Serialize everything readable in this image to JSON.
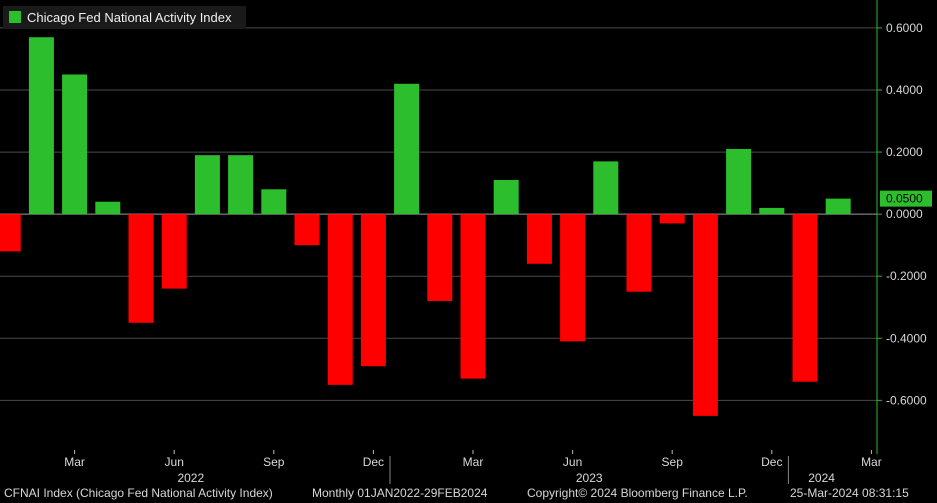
{
  "legend": {
    "label": "Chicago Fed National Activity Index",
    "color": "#2dbe2d"
  },
  "colors": {
    "positive": "#2dbe2d",
    "negative": "#ff0000",
    "axis": "#1fbf1f",
    "grid": "#4a4a4a"
  },
  "last_value_label": "0.0500",
  "chart_data": {
    "type": "bar",
    "title": "Chicago Fed National Activity Index",
    "categories": [
      "Jan 2022",
      "Feb 2022",
      "Mar 2022",
      "Apr 2022",
      "May 2022",
      "Jun 2022",
      "Jul 2022",
      "Aug 2022",
      "Sep 2022",
      "Oct 2022",
      "Nov 2022",
      "Dec 2022",
      "Jan 2023",
      "Feb 2023",
      "Mar 2023",
      "Apr 2023",
      "May 2023",
      "Jun 2023",
      "Jul 2023",
      "Aug 2023",
      "Sep 2023",
      "Oct 2023",
      "Nov 2023",
      "Dec 2023",
      "Jan 2024",
      "Feb 2024"
    ],
    "values": [
      -0.12,
      0.57,
      0.45,
      0.04,
      -0.35,
      -0.24,
      0.19,
      0.19,
      0.08,
      -0.1,
      -0.55,
      -0.49,
      0.42,
      -0.28,
      -0.53,
      0.11,
      -0.16,
      -0.41,
      0.17,
      -0.25,
      -0.03,
      -0.65,
      0.21,
      0.02,
      -0.54,
      0.05
    ],
    "ylim": [
      -0.76,
      0.69
    ],
    "yticks": [
      0.6,
      0.4,
      0.2,
      0.0,
      -0.2,
      -0.4,
      -0.6
    ],
    "ytick_labels": [
      "0.6000",
      "0.4000",
      "0.2000",
      "0.0000",
      "-0.2000",
      "-0.4000",
      "-0.6000"
    ],
    "month_ticks": [
      {
        "index": 2,
        "label": "Mar"
      },
      {
        "index": 5,
        "label": "Jun"
      },
      {
        "index": 8,
        "label": "Sep"
      },
      {
        "index": 11,
        "label": "Dec"
      },
      {
        "index": 14,
        "label": "Mar"
      },
      {
        "index": 17,
        "label": "Jun"
      },
      {
        "index": 20,
        "label": "Sep"
      },
      {
        "index": 23,
        "label": "Dec"
      },
      {
        "index": 26,
        "label": "Mar"
      }
    ],
    "year_labels": [
      {
        "label": "2022",
        "from": 0,
        "to": 11
      },
      {
        "label": "2023",
        "from": 12,
        "to": 23
      },
      {
        "label": "2024",
        "from": 24,
        "to": 25
      }
    ],
    "xlabel": "",
    "ylabel": "",
    "grid": true,
    "legend": "top-left"
  },
  "footer": {
    "series": "CFNAI Index (Chicago Fed National Activity Index)",
    "range": "Monthly 01JAN2022-29FEB2024",
    "copyright": "Copyright© 2024 Bloomberg Finance L.P.",
    "timestamp": "25-Mar-2024 08:31:15"
  }
}
